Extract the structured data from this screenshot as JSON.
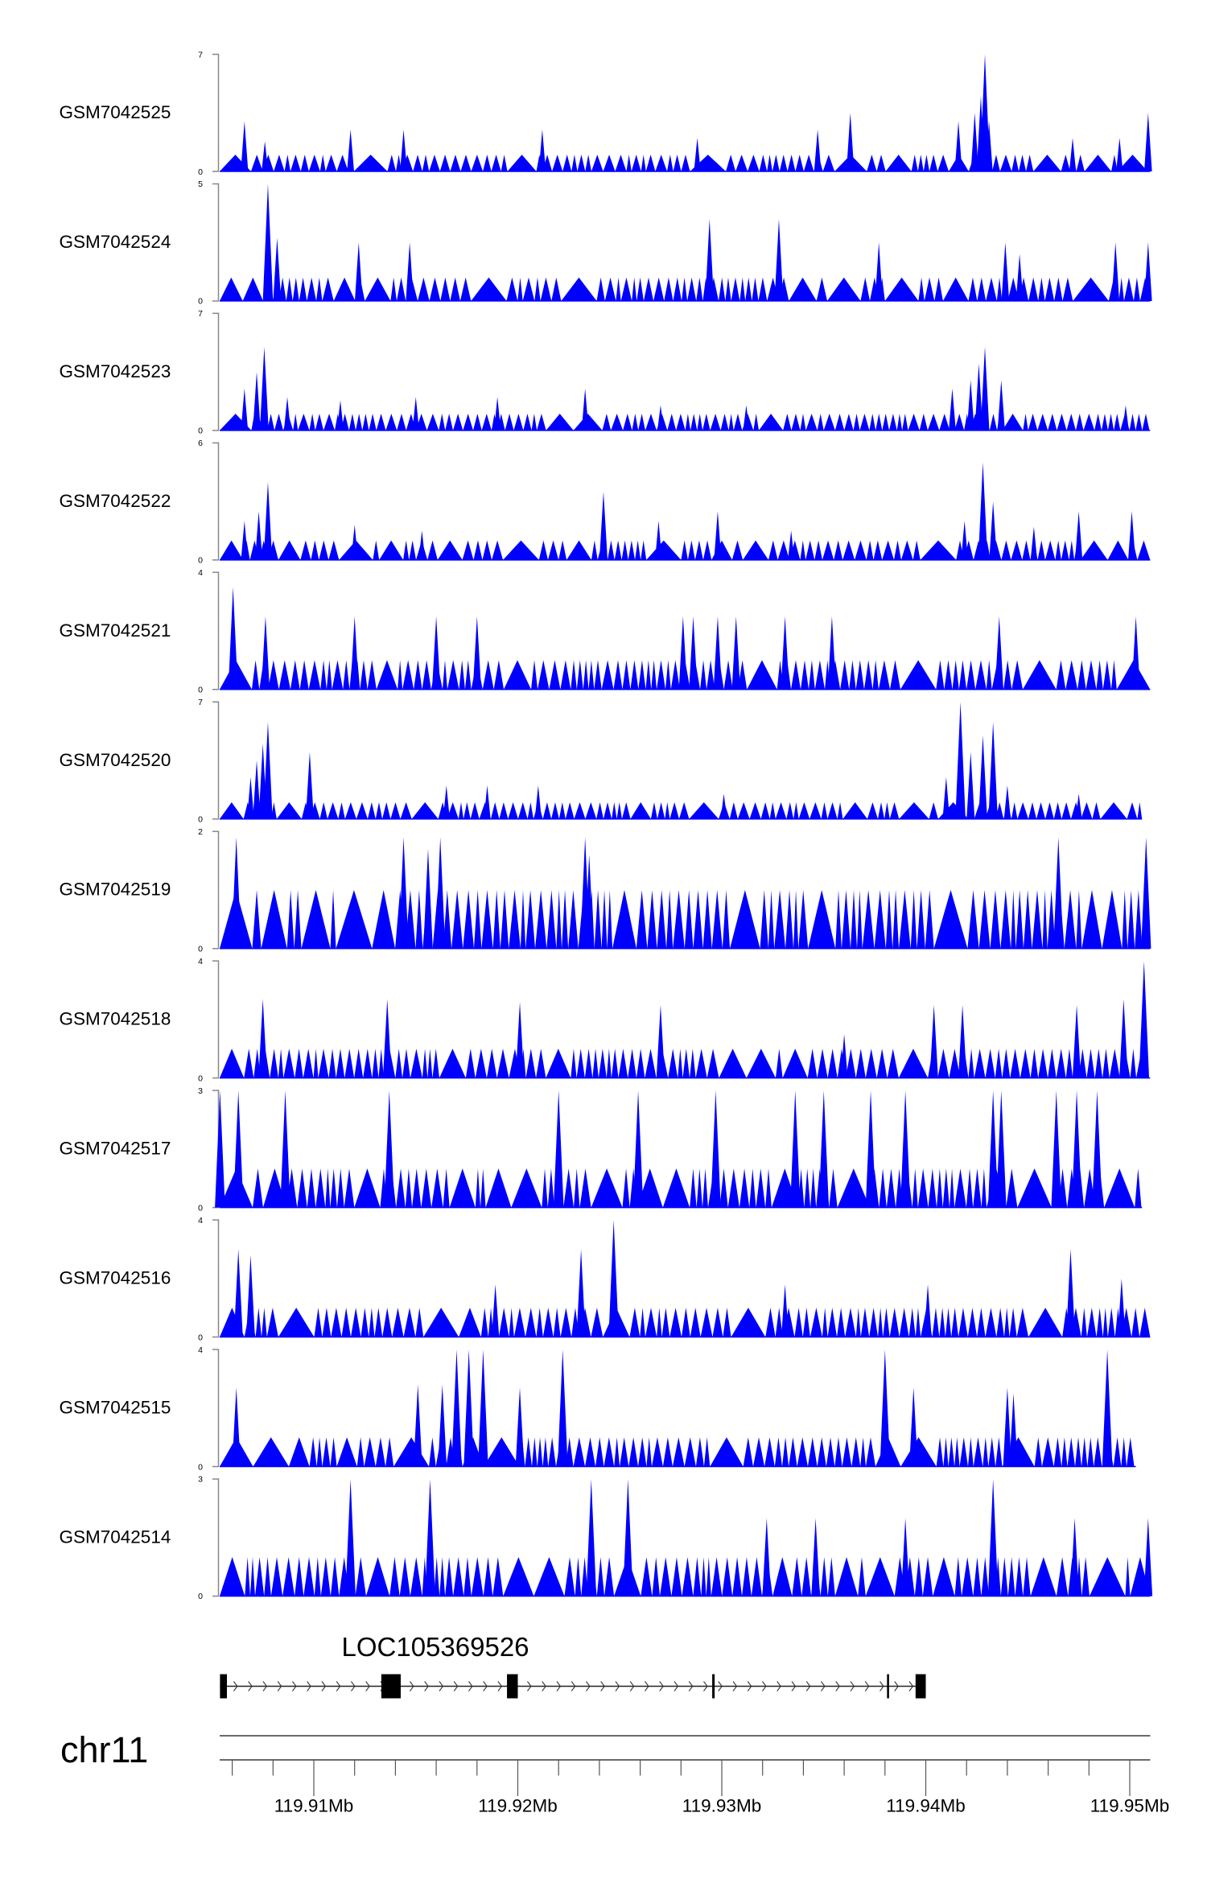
{
  "chart_data": {
    "type": "area",
    "title": "",
    "xlabel": "",
    "chromosome": "chr11",
    "x_unit": "kb offset from 119.900 Mb",
    "xlim_kb": [
      5.4,
      51.0
    ],
    "x_ticks": [
      {
        "kb": 10,
        "label": "119.91Mb"
      },
      {
        "kb": 20,
        "label": "119.92Mb"
      },
      {
        "kb": 30,
        "label": "119.93Mb"
      },
      {
        "kb": 40,
        "label": "119.94Mb"
      },
      {
        "kb": 50,
        "label": "119.95Mb"
      }
    ],
    "minor_tick_step_kb": 2,
    "color": "#0000ff",
    "background_level": 1,
    "tracks": [
      {
        "name": "GSM7042525",
        "ymax": 7,
        "ymin": 0,
        "end_kb": 51.0,
        "peaks": [
          [
            6.6,
            3
          ],
          [
            7.6,
            1.8
          ],
          [
            11.8,
            2.5
          ],
          [
            14.4,
            2.5
          ],
          [
            21.2,
            2.5
          ],
          [
            28.8,
            2
          ],
          [
            34.7,
            2.5
          ],
          [
            36.3,
            3.5
          ],
          [
            41.6,
            3
          ],
          [
            42.4,
            3.5
          ],
          [
            42.7,
            4.5
          ],
          [
            42.9,
            7
          ],
          [
            43.1,
            3
          ],
          [
            47.2,
            2
          ],
          [
            49.5,
            2
          ],
          [
            50.9,
            3.5
          ]
        ]
      },
      {
        "name": "GSM7042524",
        "ymax": 5,
        "ymin": 0,
        "end_kb": 51.0,
        "peaks": [
          [
            7.75,
            5
          ],
          [
            8.2,
            2.7
          ],
          [
            12.2,
            2.5
          ],
          [
            14.7,
            2.5
          ],
          [
            29.4,
            3.5
          ],
          [
            32.8,
            3.5
          ],
          [
            37.7,
            2.5
          ],
          [
            43.9,
            2.5
          ],
          [
            44.6,
            2
          ],
          [
            49.3,
            2.5
          ],
          [
            50.9,
            2.5
          ]
        ]
      },
      {
        "name": "GSM7042523",
        "ymax": 7,
        "ymin": 0,
        "end_kb": 51.0,
        "peaks": [
          [
            6.6,
            2.5
          ],
          [
            7.2,
            3.5
          ],
          [
            7.57,
            5
          ],
          [
            8.7,
            2
          ],
          [
            11.3,
            1.8
          ],
          [
            15.0,
            2
          ],
          [
            19.0,
            2
          ],
          [
            23.3,
            2.5
          ],
          [
            27.0,
            1.5
          ],
          [
            31.2,
            1.5
          ],
          [
            41.3,
            2.5
          ],
          [
            42.2,
            3
          ],
          [
            42.9,
            5
          ],
          [
            42.6,
            4
          ],
          [
            43.7,
            3
          ],
          [
            49.8,
            1.5
          ]
        ]
      },
      {
        "name": "GSM7042522",
        "ymax": 6,
        "ymin": 0,
        "end_kb": 51.0,
        "peaks": [
          [
            6.6,
            2
          ],
          [
            7.3,
            2.5
          ],
          [
            7.75,
            4
          ],
          [
            12.0,
            1.8
          ],
          [
            15.3,
            1.5
          ],
          [
            24.2,
            3.5
          ],
          [
            26.9,
            2
          ],
          [
            29.8,
            2.5
          ],
          [
            33.4,
            1.5
          ],
          [
            41.9,
            2
          ],
          [
            42.8,
            5
          ],
          [
            43.3,
            3
          ],
          [
            45.3,
            1.7
          ],
          [
            47.5,
            2.5
          ],
          [
            50.1,
            2.5
          ]
        ]
      },
      {
        "name": "GSM7042521",
        "ymax": 4,
        "ymin": 0,
        "end_kb": 51.0,
        "peaks": [
          [
            6.04,
            3.5
          ],
          [
            7.63,
            2.5
          ],
          [
            12.0,
            2.5
          ],
          [
            16.0,
            2.5
          ],
          [
            18.0,
            2.5
          ],
          [
            28.1,
            2.5
          ],
          [
            28.6,
            2.5
          ],
          [
            29.8,
            2.5
          ],
          [
            30.7,
            2.5
          ],
          [
            33.1,
            2.5
          ],
          [
            35.4,
            2.5
          ],
          [
            43.6,
            2.5
          ],
          [
            50.3,
            2.5
          ]
        ]
      },
      {
        "name": "GSM7042520",
        "ymax": 7,
        "ymin": 0,
        "end_kb": 50.6,
        "peaks": [
          [
            6.9,
            2.5
          ],
          [
            7.2,
            3.5
          ],
          [
            7.5,
            4.5
          ],
          [
            7.75,
            5.8
          ],
          [
            9.8,
            4
          ],
          [
            16.5,
            2
          ],
          [
            18.5,
            2
          ],
          [
            21.0,
            2
          ],
          [
            30.1,
            1.5
          ],
          [
            41.0,
            2.5
          ],
          [
            41.7,
            7
          ],
          [
            42.2,
            4
          ],
          [
            42.8,
            5
          ],
          [
            43.3,
            5.8
          ],
          [
            44.0,
            2
          ],
          [
            47.5,
            1.5
          ]
        ]
      },
      {
        "name": "GSM7042519",
        "ymax": 2,
        "ymin": 0,
        "end_kb": 51.0,
        "peaks": [
          [
            6.2,
            1.9
          ],
          [
            14.4,
            1.9
          ],
          [
            15.6,
            1.7
          ],
          [
            16.2,
            1.9
          ],
          [
            23.3,
            1.9
          ],
          [
            23.5,
            1.6
          ],
          [
            46.5,
            1.9
          ],
          [
            50.8,
            1.9
          ]
        ]
      },
      {
        "name": "GSM7042518",
        "ymax": 4,
        "ymin": 0,
        "end_kb": 51.0,
        "peaks": [
          [
            7.5,
            2.7
          ],
          [
            13.6,
            2.7
          ],
          [
            20.1,
            2.6
          ],
          [
            27.0,
            2.5
          ],
          [
            36.0,
            1.5
          ],
          [
            40.4,
            2.5
          ],
          [
            41.8,
            2.5
          ],
          [
            47.4,
            2.5
          ],
          [
            49.7,
            2.7
          ],
          [
            50.7,
            4
          ]
        ]
      },
      {
        "name": "GSM7042517",
        "ymax": 3,
        "ymin": 0,
        "end_kb": 50.6,
        "peaks": [
          [
            5.4,
            3
          ],
          [
            6.3,
            3
          ],
          [
            8.6,
            3
          ],
          [
            13.7,
            3
          ],
          [
            22.0,
            3
          ],
          [
            25.9,
            3
          ],
          [
            29.7,
            3
          ],
          [
            33.6,
            3
          ],
          [
            35.0,
            3
          ],
          [
            37.3,
            3
          ],
          [
            39.0,
            3
          ],
          [
            43.3,
            3
          ],
          [
            43.7,
            3
          ],
          [
            46.4,
            3
          ],
          [
            47.4,
            3
          ],
          [
            48.4,
            3
          ]
        ]
      },
      {
        "name": "GSM7042516",
        "ymax": 4,
        "ymin": 0,
        "end_kb": 51.0,
        "peaks": [
          [
            6.3,
            3
          ],
          [
            6.9,
            2.8
          ],
          [
            18.9,
            1.8
          ],
          [
            23.1,
            3
          ],
          [
            24.7,
            4
          ],
          [
            33.1,
            1.8
          ],
          [
            40.1,
            1.8
          ],
          [
            47.1,
            3
          ],
          [
            49.6,
            2
          ]
        ]
      },
      {
        "name": "GSM7042515",
        "ymax": 4,
        "ymin": 0,
        "end_kb": 50.3,
        "peaks": [
          [
            6.2,
            2.7
          ],
          [
            15.1,
            2.8
          ],
          [
            16.3,
            2.8
          ],
          [
            17.0,
            4
          ],
          [
            17.6,
            4
          ],
          [
            18.3,
            4
          ],
          [
            20.1,
            2.7
          ],
          [
            22.2,
            4
          ],
          [
            38.0,
            4
          ],
          [
            39.4,
            2.7
          ],
          [
            44.0,
            2.7
          ],
          [
            44.3,
            2.5
          ],
          [
            48.9,
            4
          ]
        ]
      },
      {
        "name": "GSM7042514",
        "ymax": 3,
        "ymin": 0,
        "end_kb": 51.0,
        "peaks": [
          [
            11.8,
            3
          ],
          [
            15.7,
            3
          ],
          [
            23.6,
            3
          ],
          [
            25.4,
            3
          ],
          [
            32.2,
            2
          ],
          [
            34.6,
            2
          ],
          [
            39.0,
            2
          ],
          [
            43.3,
            3
          ],
          [
            47.3,
            2
          ],
          [
            50.9,
            2
          ]
        ]
      }
    ],
    "gene": {
      "name": "LOC105369526",
      "strand": "+",
      "exons_kb": [
        [
          5.4,
          5.74
        ],
        [
          13.31,
          14.26
        ],
        [
          19.47,
          20.0
        ],
        [
          29.53,
          29.65
        ],
        [
          38.1,
          38.2
        ],
        [
          39.5,
          40.0
        ]
      ]
    }
  }
}
